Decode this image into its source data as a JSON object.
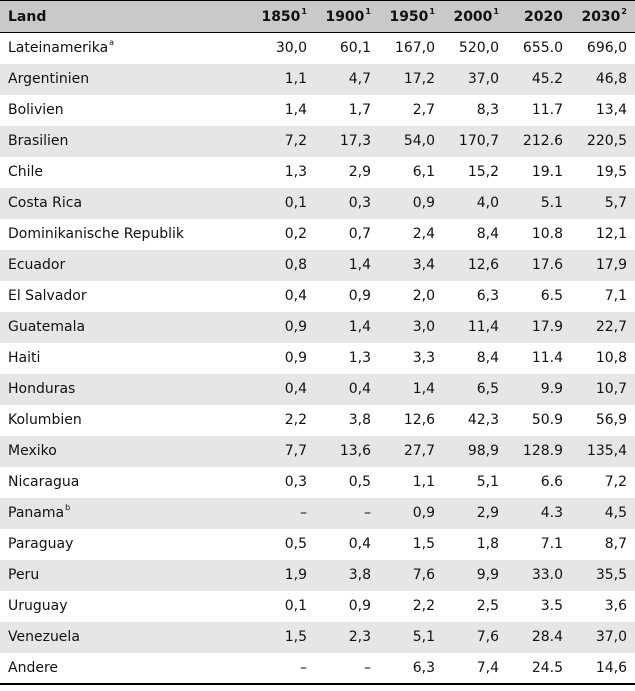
{
  "table": {
    "headers": [
      {
        "label": "Land",
        "sup": ""
      },
      {
        "label": "1850",
        "sup": "1"
      },
      {
        "label": "1900",
        "sup": "1"
      },
      {
        "label": "1950",
        "sup": "1"
      },
      {
        "label": "2000",
        "sup": "1"
      },
      {
        "label": "2020",
        "sup": ""
      },
      {
        "label": "2030",
        "sup": "2"
      }
    ],
    "rows": [
      {
        "land": "Lateinamerika",
        "sup": "a",
        "values": [
          "30,0",
          "60,1",
          "167,0",
          "520,0",
          "655.0",
          "696,0"
        ]
      },
      {
        "land": "Argentinien",
        "sup": "",
        "values": [
          "1,1",
          "4,7",
          "17,2",
          "37,0",
          "45.2",
          "46,8"
        ]
      },
      {
        "land": "Bolivien",
        "sup": "",
        "values": [
          "1,4",
          "1,7",
          "2,7",
          "8,3",
          "11.7",
          "13,4"
        ]
      },
      {
        "land": "Brasilien",
        "sup": "",
        "values": [
          "7,2",
          "17,3",
          "54,0",
          "170,7",
          "212.6",
          "220,5"
        ]
      },
      {
        "land": "Chile",
        "sup": "",
        "values": [
          "1,3",
          "2,9",
          "6,1",
          "15,2",
          "19.1",
          "19,5"
        ]
      },
      {
        "land": "Costa Rica",
        "sup": "",
        "values": [
          "0,1",
          "0,3",
          "0,9",
          "4,0",
          "5.1",
          "5,7"
        ]
      },
      {
        "land": "Dominikanische Republik",
        "sup": "",
        "values": [
          "0,2",
          "0,7",
          "2,4",
          "8,4",
          "10.8",
          "12,1"
        ]
      },
      {
        "land": "Ecuador",
        "sup": "",
        "values": [
          "0,8",
          "1,4",
          "3,4",
          "12,6",
          "17.6",
          "17,9"
        ]
      },
      {
        "land": "El Salvador",
        "sup": "",
        "values": [
          "0,4",
          "0,9",
          "2,0",
          "6,3",
          "6.5",
          "7,1"
        ]
      },
      {
        "land": "Guatemala",
        "sup": "",
        "values": [
          "0,9",
          "1,4",
          "3,0",
          "11,4",
          "17.9",
          "22,7"
        ]
      },
      {
        "land": "Haiti",
        "sup": "",
        "values": [
          "0,9",
          "1,3",
          "3,3",
          "8,4",
          "11.4",
          "10,8"
        ]
      },
      {
        "land": "Honduras",
        "sup": "",
        "values": [
          "0,4",
          "0,4",
          "1,4",
          "6,5",
          "9.9",
          "10,7"
        ]
      },
      {
        "land": "Kolumbien",
        "sup": "",
        "values": [
          "2,2",
          "3,8",
          "12,6",
          "42,3",
          "50.9",
          "56,9"
        ]
      },
      {
        "land": "Mexiko",
        "sup": "",
        "values": [
          "7,7",
          "13,6",
          "27,7",
          "98,9",
          "128.9",
          "135,4"
        ]
      },
      {
        "land": "Nicaragua",
        "sup": "",
        "values": [
          "0,3",
          "0,5",
          "1,1",
          "5,1",
          "6.6",
          "7,2"
        ]
      },
      {
        "land": "Panama",
        "sup": "b",
        "values": [
          "–",
          "–",
          "0,9",
          "2,9",
          "4.3",
          "4,5"
        ]
      },
      {
        "land": "Paraguay",
        "sup": "",
        "values": [
          "0,5",
          "0,4",
          "1,5",
          "1,8",
          "7.1",
          "8,7"
        ]
      },
      {
        "land": "Peru",
        "sup": "",
        "values": [
          "1,9",
          "3,8",
          "7,6",
          "9,9",
          "33.0",
          "35,5"
        ]
      },
      {
        "land": "Uruguay",
        "sup": "",
        "values": [
          "0,1",
          "0,9",
          "2,2",
          "2,5",
          "3.5",
          "3,6"
        ]
      },
      {
        "land": "Venezuela",
        "sup": "",
        "values": [
          "1,5",
          "2,3",
          "5,1",
          "7,6",
          "28.4",
          "37,0"
        ]
      },
      {
        "land": "Andere",
        "sup": "",
        "values": [
          "–",
          "–",
          "6,3",
          "7,4",
          "24.5",
          "14,6"
        ]
      }
    ]
  }
}
